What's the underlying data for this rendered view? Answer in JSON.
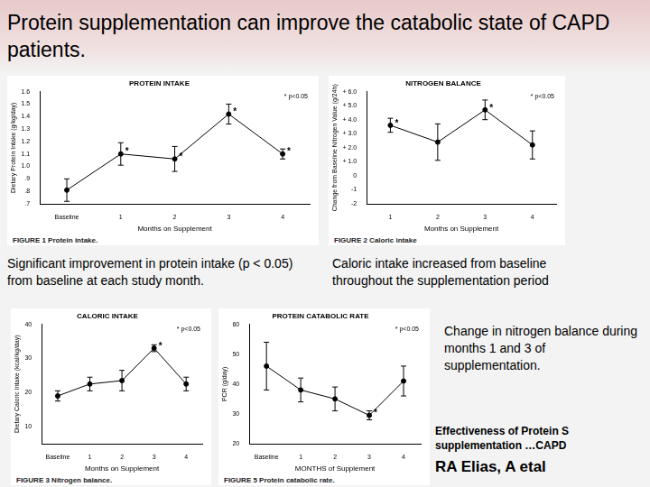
{
  "title": "Protein supplementation can improve the catabolic state of CAPD patients.",
  "captions": [
    "Significant improvement in protein intake (p < 0.05) from baseline at each study month.",
    "Caloric intake increased from baseline throughout the supplementation period",
    "Change in nitrogen balance during months 1 and 3 of supplementation."
  ],
  "citation": [
    "Effectiveness of Protein S supplementation …CAPD",
    "RA Elias, A etal"
  ],
  "chart_data": [
    {
      "type": "line",
      "title": "PROTEIN INTAKE",
      "caption": "FIGURE 1  Protein intake.",
      "x_label": "Months on Supplement",
      "y_label": "Dietary Protein Intake (g/kg/day)",
      "categories": [
        "Baseline",
        "1",
        "2",
        "3",
        "4"
      ],
      "values": [
        0.81,
        1.1,
        1.06,
        1.42,
        1.1
      ],
      "errors": [
        0.09,
        0.09,
        0.1,
        0.08,
        0.04
      ],
      "asterisks": [
        null,
        "*",
        "*",
        "*",
        "*"
      ],
      "annotation": "* p<0.05",
      "color": "#000000",
      "marker": "circle",
      "line_style": "solid",
      "grid": false,
      "ylim": [
        0.7,
        1.6
      ],
      "yticks": [
        {
          "value": 0.7,
          "label": ".7"
        },
        {
          "value": 0.8,
          "label": ".8"
        },
        {
          "value": 0.9,
          "label": ".9"
        },
        {
          "value": 1.0,
          "label": "1.0"
        },
        1.1,
        1.2,
        1.3,
        1.4,
        1.5,
        1.6
      ]
    },
    {
      "type": "line",
      "title": "NITROGEN BALANCE",
      "caption": "FIGURE 2  Caloric intake",
      "x_label": "Months on Supplement",
      "y_label": "Change from Baseline Nitrogen Value (g/24h)",
      "categories": [
        "1",
        "2",
        "3",
        "4"
      ],
      "values": [
        3.6,
        2.4,
        4.7,
        2.2
      ],
      "errors": [
        0.5,
        1.3,
        0.7,
        1.0
      ],
      "asterisks": [
        "*",
        null,
        "*",
        null
      ],
      "annotation": "* p<0.05",
      "color": "#000000",
      "marker": "circle",
      "line_style": "solid",
      "grid": false,
      "ylim": [
        -2,
        6
      ],
      "yticks": [
        -2,
        -1,
        0,
        {
          "value": 1,
          "label": "+ 1.0"
        },
        {
          "value": 2,
          "label": "+ 2.0"
        },
        {
          "value": 3,
          "label": "+ 3.0"
        },
        {
          "value": 4,
          "label": "+ 4.0"
        },
        {
          "value": 5,
          "label": "+ 5.0"
        },
        {
          "value": 6,
          "label": "+ 6.0"
        }
      ]
    },
    {
      "type": "line",
      "title": "CALORIC INTAKE",
      "caption": "FIGURE 3  Nitrogen balance.",
      "x_label": "Months on Supplement",
      "y_label": "Dietary Caloric Intake (kcal/kg/day)",
      "categories": [
        "Baseline",
        "1",
        "2",
        "3",
        "4"
      ],
      "values": [
        19,
        22.5,
        23.5,
        33,
        22.5
      ],
      "errors": [
        1.5,
        2,
        3,
        1,
        2
      ],
      "asterisks": [
        null,
        null,
        null,
        "*",
        null
      ],
      "annotation": "* p<0.05",
      "color": "#000000",
      "marker": "circle",
      "line_style": "solid",
      "grid": false,
      "ylim": [
        5,
        40
      ],
      "yticks": [
        10,
        20,
        30,
        40
      ]
    },
    {
      "type": "line",
      "title": "PROTEIN CATABOLIC RATE",
      "caption": "FIGURE 5  Protein catabolic rate.",
      "x_label": "MONTHS of Supplement",
      "y_label": "PCR (g/day)",
      "categories": [
        "Baseline",
        "1",
        "2",
        "3",
        "4"
      ],
      "values": [
        46,
        38,
        35,
        29.5,
        41
      ],
      "errors": [
        8,
        4,
        4,
        1.5,
        5
      ],
      "asterisks": [
        null,
        null,
        null,
        "*",
        null
      ],
      "annotation": "* p<0.05",
      "color": "#000000",
      "marker": "circle",
      "line_style": "solid",
      "grid": false,
      "ylim": [
        20,
        60
      ],
      "yticks": [
        20,
        30,
        40,
        50,
        60
      ]
    }
  ]
}
